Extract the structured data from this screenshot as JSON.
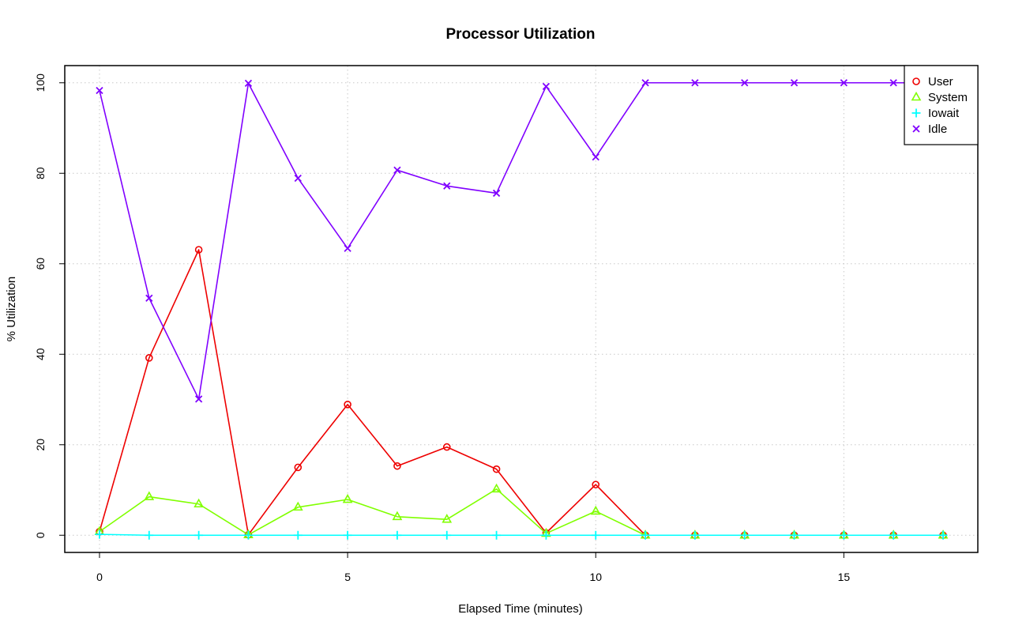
{
  "chart_data": {
    "type": "line",
    "title": "Processor Utilization",
    "xlabel": "Elapsed Time (minutes)",
    "ylabel": "% Utilization",
    "xlim": [
      -0.7,
      17.7
    ],
    "ylim": [
      -3.8,
      103.8
    ],
    "x_ticks": [
      0,
      5,
      10,
      15
    ],
    "y_ticks": [
      0,
      20,
      40,
      60,
      80,
      100
    ],
    "grid": true,
    "legend_position": "top-right",
    "x": [
      0,
      1,
      2,
      3,
      4,
      5,
      6,
      7,
      8,
      9,
      10,
      11,
      12,
      13,
      14,
      15,
      16,
      17
    ],
    "series": [
      {
        "name": "User",
        "color": "#ee0000",
        "marker": "circle",
        "values": [
          0.8,
          39.2,
          63.1,
          0.1,
          15.0,
          28.9,
          15.3,
          19.5,
          14.6,
          0.5,
          11.2,
          0,
          0,
          0,
          0,
          0,
          0,
          0
        ]
      },
      {
        "name": "System",
        "color": "#80ff00",
        "marker": "triangle",
        "values": [
          0.8,
          8.5,
          6.9,
          0.1,
          6.2,
          7.9,
          4.1,
          3.5,
          10.2,
          0.4,
          5.3,
          0,
          0,
          0,
          0,
          0,
          0,
          0
        ]
      },
      {
        "name": "Iowait",
        "color": "#00ffff",
        "marker": "plus",
        "values": [
          0.2,
          0.0,
          0.0,
          0.0,
          0.0,
          0.0,
          0.0,
          0.0,
          0.0,
          0.0,
          0.0,
          0,
          0,
          0,
          0,
          0,
          0,
          0
        ]
      },
      {
        "name": "Idle",
        "color": "#8000ff",
        "marker": "cross",
        "values": [
          98.3,
          52.4,
          30.1,
          99.9,
          78.9,
          63.4,
          80.7,
          77.2,
          75.6,
          99.2,
          83.6,
          100,
          100,
          100,
          100,
          100,
          100,
          100
        ]
      }
    ]
  }
}
